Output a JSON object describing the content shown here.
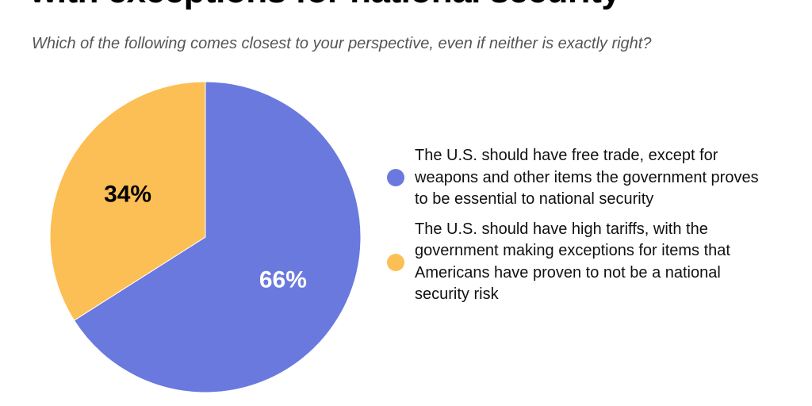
{
  "title": "with exceptions for national security",
  "subtitle": "Which of the following comes closest to your perspective, even if neither is exactly right?",
  "chart_data": {
    "type": "pie",
    "title": "with exceptions for national security",
    "subtitle": "Which of the following comes closest to your perspective, even if neither is exactly right?",
    "slices": [
      {
        "label": "The U.S. should have free trade, except for weapons and other items the government proves to be essential to national security",
        "value": 66,
        "display": "66%",
        "color": "#6a79de",
        "text_color": "#ffffff"
      },
      {
        "label": "The U.S. should have high tariffs, with the government making exceptions for items that Americans have proven to not be a national security risk",
        "value": 34,
        "display": "34%",
        "color": "#fcbf55",
        "text_color": "#000000"
      }
    ],
    "start_angle": "12 o'clock",
    "direction": "clockwise",
    "legend_position": "right"
  }
}
